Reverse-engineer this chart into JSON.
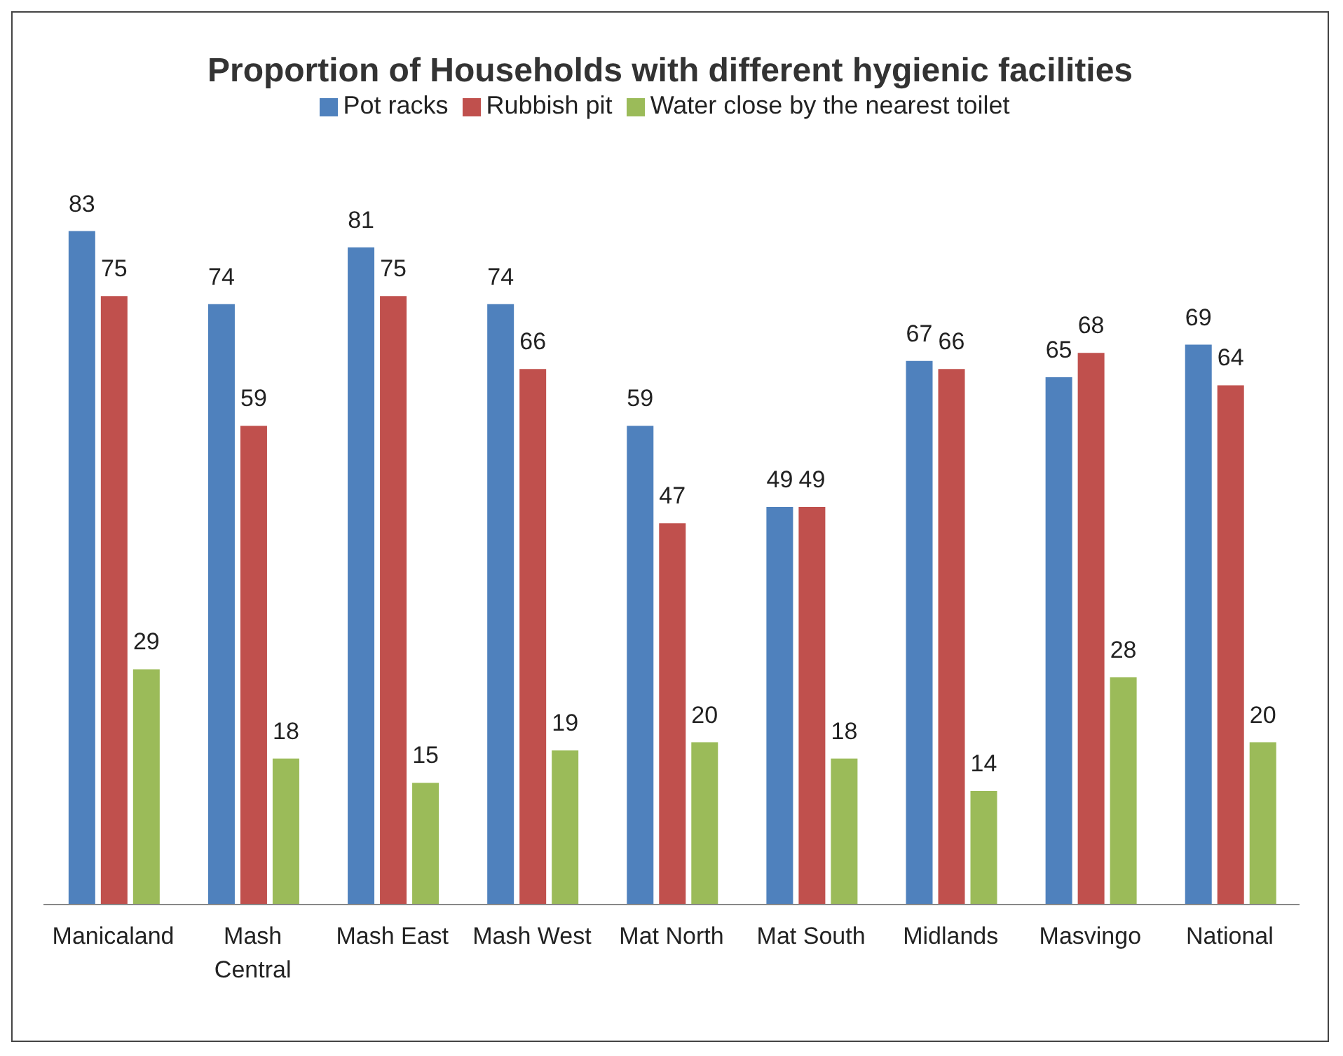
{
  "chart_data": {
    "type": "bar",
    "title": "Proportion of Households with different hygienic facilities",
    "categories": [
      "Manicaland",
      "Mash Central",
      "Mash East",
      "Mash West",
      "Mat North",
      "Mat South",
      "Midlands",
      "Masvingo",
      "National"
    ],
    "series": [
      {
        "name": "Pot racks",
        "color": "#4f81bd",
        "values": [
          83,
          74,
          81,
          74,
          59,
          49,
          67,
          65,
          69
        ]
      },
      {
        "name": "Rubbish pit",
        "color": "#c0504d",
        "values": [
          75,
          59,
          75,
          66,
          47,
          49,
          66,
          68,
          64
        ]
      },
      {
        "name": "Water close by the nearest toilet",
        "color": "#9bbb59",
        "values": [
          29,
          18,
          15,
          19,
          20,
          18,
          14,
          28,
          20
        ]
      }
    ],
    "data_labels": true,
    "legend": "top",
    "grid": false
  }
}
